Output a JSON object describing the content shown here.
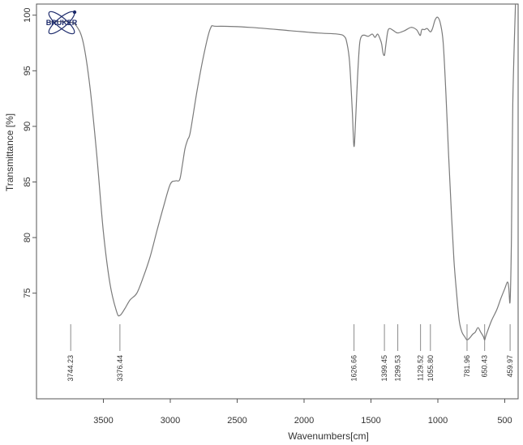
{
  "chart_data": {
    "type": "line",
    "title": "",
    "xlabel": "Wavenumbers[cm]",
    "ylabel": "Transmittance [%]",
    "xlim": [
      4000,
      400
    ],
    "ylim": [
      65.5,
      101
    ],
    "x_reversed": true,
    "x_ticks": [
      3500,
      3000,
      2500,
      2000,
      1500,
      1000,
      500
    ],
    "y_ticks": [
      75,
      80,
      85,
      90,
      95,
      100
    ],
    "grid": false,
    "series": [
      {
        "color": "#7a7a7a",
        "x": [
          3900,
          3760,
          3700,
          3650,
          3600,
          3550,
          3500,
          3450,
          3400,
          3376,
          3340,
          3300,
          3250,
          3200,
          3150,
          3100,
          3050,
          3000,
          2960,
          2930,
          2910,
          2890,
          2870,
          2850,
          2800,
          2750,
          2700,
          2650,
          2400,
          2100,
          1900,
          1750,
          1700,
          1680,
          1660,
          1640,
          1627,
          1615,
          1600,
          1585,
          1570,
          1550,
          1520,
          1490,
          1470,
          1450,
          1430,
          1420,
          1410,
          1399,
          1390,
          1375,
          1360,
          1330,
          1300,
          1250,
          1200,
          1160,
          1140,
          1130,
          1120,
          1100,
          1080,
          1056,
          1040,
          1020,
          1000,
          980,
          960,
          940,
          920,
          900,
          880,
          860,
          840,
          820,
          800,
          782,
          760,
          740,
          720,
          700,
          680,
          660,
          650,
          640,
          600,
          560,
          530,
          500,
          480,
          470,
          460,
          450,
          440,
          420
        ],
        "y": [
          99.4,
          99.4,
          99.0,
          97.5,
          93.5,
          87.5,
          80.5,
          75.8,
          73.3,
          73.0,
          73.6,
          74.4,
          75.0,
          76.5,
          78.3,
          80.6,
          82.8,
          84.8,
          85.1,
          85.2,
          86.5,
          88.0,
          88.8,
          89.5,
          93.2,
          96.4,
          98.8,
          99.0,
          98.9,
          98.6,
          98.4,
          98.3,
          98.1,
          97.5,
          95.8,
          91.5,
          88.2,
          90.5,
          94.5,
          97.4,
          98.1,
          98.2,
          98.1,
          98.3,
          98.0,
          98.3,
          97.8,
          97.4,
          96.6,
          96.4,
          97.2,
          98.5,
          98.8,
          98.6,
          98.4,
          98.6,
          98.9,
          98.7,
          98.3,
          98.2,
          98.7,
          98.7,
          98.8,
          98.5,
          98.8,
          99.6,
          99.8,
          99.2,
          97.5,
          93.0,
          87.5,
          82.5,
          78.0,
          75.0,
          72.5,
          71.5,
          71.1,
          70.8,
          71.0,
          71.3,
          71.5,
          71.9,
          71.5,
          71.1,
          70.8,
          71.2,
          72.5,
          73.5,
          74.5,
          75.4,
          76.0,
          75.5,
          74.3,
          80.0,
          92.0,
          101.0
        ]
      }
    ],
    "peak_labels": [
      "3744.23",
      "3376.44",
      "1626.66",
      "1399.45",
      "1299.53",
      "1129.52",
      "1055.80",
      "781.96",
      "650.43",
      "459.97"
    ],
    "peak_positions": [
      3744.23,
      3376.44,
      1626.66,
      1399.45,
      1299.53,
      1129.52,
      1055.8,
      781.96,
      650.43,
      459.97
    ]
  },
  "logo": {
    "text": "BRUKER",
    "color": "#1c2a6b"
  },
  "colors": {
    "spectrum": "#7a7a7a",
    "axis": "#555555",
    "peak_line": "#8a8a8a"
  }
}
